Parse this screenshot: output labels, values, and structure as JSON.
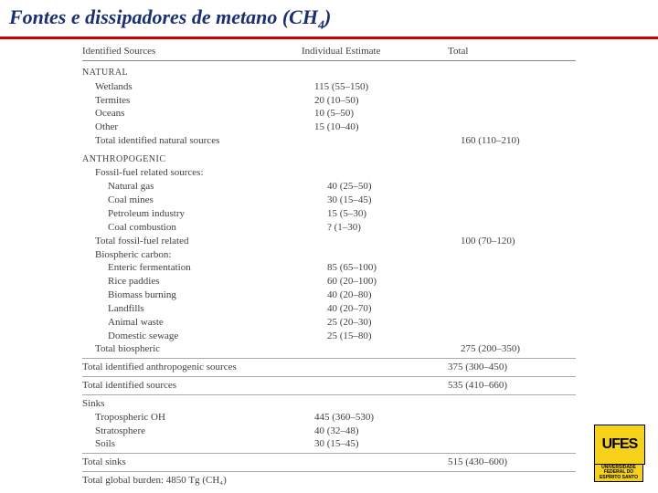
{
  "title_prefix": "Fontes e dissipadores de metano (CH",
  "title_sub": "4",
  "title_suffix": ")",
  "headers": {
    "c1": "Identified Sources",
    "c2": "Individual Estimate",
    "c3": "Total"
  },
  "natural_label": "NATURAL",
  "natural": [
    {
      "name": "Wetlands",
      "val": "115 (55–150)"
    },
    {
      "name": "Termites",
      "val": "20 (10–50)"
    },
    {
      "name": "Oceans",
      "val": "10 (5–50)"
    },
    {
      "name": "Other",
      "val": "15 (10–40)"
    }
  ],
  "natural_total": {
    "name": "Total identified natural sources",
    "total": "160 (110–210)"
  },
  "anthro_label": "ANTHROPOGENIC",
  "fossil_header": "Fossil-fuel related sources:",
  "fossil": [
    {
      "name": "Natural gas",
      "val": "40 (25–50)"
    },
    {
      "name": "Coal mines",
      "val": "30 (15–45)"
    },
    {
      "name": "Petroleum industry",
      "val": "15 (5–30)"
    },
    {
      "name": "Coal combustion",
      "val": "? (1–30)"
    }
  ],
  "fossil_total": {
    "name": "Total fossil-fuel related",
    "total": "100 (70–120)"
  },
  "bio_header": "Biospheric carbon:",
  "bio": [
    {
      "name": "Enteric fermentation",
      "val": "85 (65–100)"
    },
    {
      "name": "Rice paddies",
      "val": "60 (20–100)"
    },
    {
      "name": "Biomass burning",
      "val": "40 (20–80)"
    },
    {
      "name": "Landfills",
      "val": "40 (20–70)"
    },
    {
      "name": "Animal waste",
      "val": "25 (20–30)"
    },
    {
      "name": "Domestic sewage",
      "val": "25 (15–80)"
    }
  ],
  "bio_total": {
    "name": "Total biospheric",
    "total": "275 (200–350)"
  },
  "anthro_total": {
    "name": "Total identified anthropogenic sources",
    "total": "375 (300–450)"
  },
  "all_sources_total": {
    "name": "Total identified sources",
    "total": "535 (410–660)"
  },
  "sinks_label": "Sinks",
  "sinks": [
    {
      "name": "Tropospheric OH",
      "val": "445 (360–530)"
    },
    {
      "name": "Stratosphere",
      "val": "40 (32–48)"
    },
    {
      "name": "Soils",
      "val": "30 (15–45)"
    }
  ],
  "sinks_total": {
    "name": "Total sinks",
    "total": "515 (430–600)"
  },
  "global": "Total global burden: 4850 Tg (CH₄)",
  "logo_text": "UFES",
  "logo_sub1": "UNIVERSIDADE",
  "logo_sub2": "FEDERAL DO",
  "logo_sub3": "ESPÍRITO SANTO"
}
